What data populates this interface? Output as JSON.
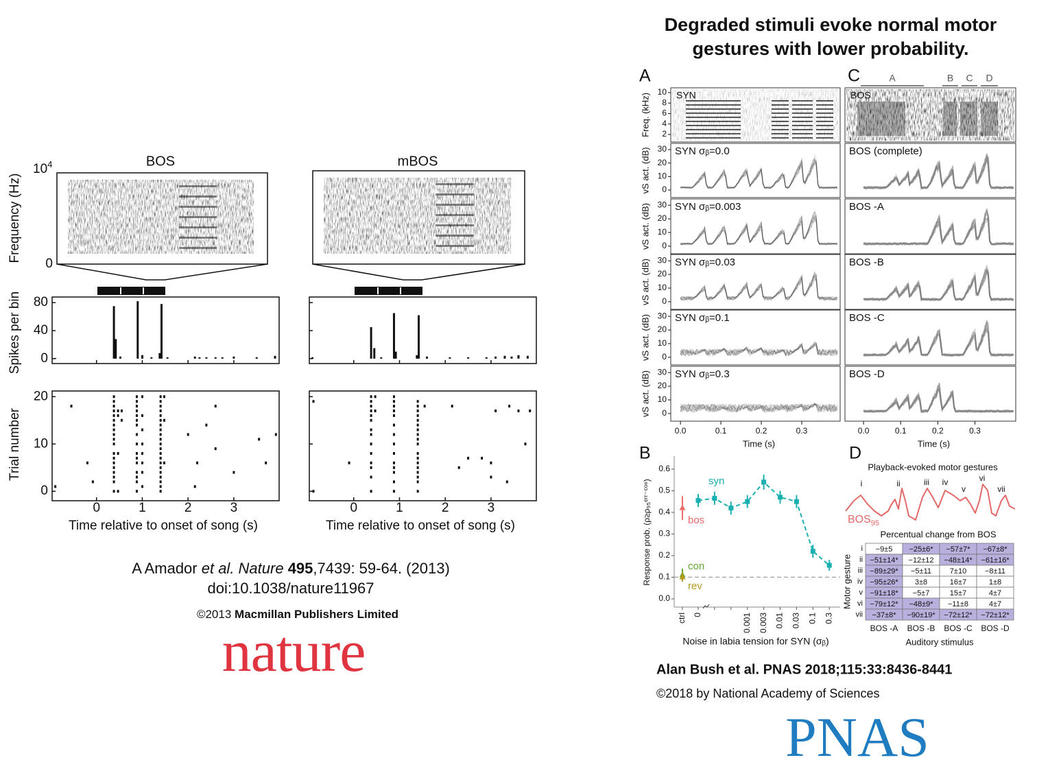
{
  "amador": {
    "panels": [
      {
        "title": "BOS",
        "spikes": [
          [
            -0.9,
            1
          ],
          [
            0.38,
            75
          ],
          [
            0.42,
            28
          ],
          [
            0.52,
            3
          ],
          [
            0.9,
            82
          ],
          [
            1.0,
            5
          ],
          [
            1.2,
            2
          ],
          [
            1.38,
            8
          ],
          [
            1.42,
            78
          ],
          [
            1.55,
            2
          ],
          [
            2.15,
            3
          ],
          [
            2.25,
            2
          ],
          [
            2.4,
            2
          ],
          [
            2.6,
            2
          ],
          [
            2.75,
            2
          ],
          [
            3.0,
            3
          ],
          [
            3.5,
            2
          ],
          [
            3.9,
            4
          ]
        ],
        "raster": [
          {
            "t": 0.38,
            "trials": [
              0,
              2,
              3,
              4,
              5,
              6,
              7,
              8,
              10,
              11,
              12,
              13,
              14,
              15,
              16,
              17,
              18,
              19,
              20
            ]
          },
          {
            "t": 0.47,
            "trials": [
              0,
              8,
              16,
              17
            ]
          },
          {
            "t": 0.55,
            "trials": [
              15,
              17
            ]
          },
          {
            "t": 0.88,
            "trials": [
              0,
              2,
              3,
              4,
              6,
              7,
              8,
              10,
              12,
              14,
              15,
              16,
              17,
              18,
              19,
              20
            ]
          },
          {
            "t": 1.0,
            "trials": [
              1,
              4,
              6,
              8,
              10,
              13,
              16,
              20
            ]
          },
          {
            "t": 1.4,
            "trials": [
              0,
              1,
              2,
              3,
              4,
              5,
              6,
              7,
              8,
              9,
              10,
              11,
              12,
              13,
              14,
              15,
              16,
              17,
              18,
              19,
              20
            ]
          },
          {
            "t": 1.48,
            "trials": [
              6,
              15,
              20
            ]
          },
          {
            "t": -0.55,
            "trials": [
              18
            ]
          },
          {
            "t": -0.2,
            "trials": [
              6
            ]
          },
          {
            "t": -0.08,
            "trials": [
              2
            ]
          },
          {
            "t": -0.9,
            "trials": [
              1
            ]
          },
          {
            "t": 2.0,
            "trials": [
              12
            ]
          },
          {
            "t": 2.15,
            "trials": [
              1
            ]
          },
          {
            "t": 2.2,
            "trials": [
              6
            ]
          },
          {
            "t": 2.4,
            "trials": [
              14
            ]
          },
          {
            "t": 2.6,
            "trials": [
              9,
              18
            ]
          },
          {
            "t": 3.0,
            "trials": [
              4
            ]
          },
          {
            "t": 3.55,
            "trials": [
              11
            ]
          },
          {
            "t": 3.7,
            "trials": [
              6
            ]
          },
          {
            "t": 3.92,
            "trials": [
              12
            ]
          }
        ]
      },
      {
        "title": "mBOS",
        "spikes": [
          [
            -0.9,
            2
          ],
          [
            0.38,
            45
          ],
          [
            0.45,
            15
          ],
          [
            0.6,
            2
          ],
          [
            0.88,
            65
          ],
          [
            0.92,
            10
          ],
          [
            1.38,
            5
          ],
          [
            1.42,
            62
          ],
          [
            1.6,
            3
          ],
          [
            2.1,
            2
          ],
          [
            2.5,
            2
          ],
          [
            2.9,
            2
          ],
          [
            3.1,
            3
          ],
          [
            3.3,
            4
          ],
          [
            3.45,
            3
          ],
          [
            3.6,
            5
          ],
          [
            3.8,
            4
          ]
        ],
        "raster": [
          {
            "t": 0.38,
            "trials": [
              0,
              3,
              5,
              6,
              8,
              10,
              12,
              13,
              15,
              16,
              17,
              18,
              19,
              20
            ]
          },
          {
            "t": 0.47,
            "trials": [
              17,
              20
            ]
          },
          {
            "t": 0.88,
            "trials": [
              0,
              2,
              4,
              5,
              6,
              8,
              10,
              12,
              14,
              16,
              17,
              18,
              19,
              20
            ]
          },
          {
            "t": 1.4,
            "trials": [
              0,
              2,
              3,
              4,
              5,
              6,
              7,
              8,
              10,
              11,
              12,
              13,
              14,
              15,
              16,
              17,
              18,
              19
            ]
          },
          {
            "t": 1.55,
            "trials": [
              18
            ]
          },
          {
            "t": -0.88,
            "trials": [
              0,
              19
            ]
          },
          {
            "t": -0.1,
            "trials": [
              6
            ]
          },
          {
            "t": 2.3,
            "trials": [
              5
            ]
          },
          {
            "t": 2.5,
            "trials": [
              7
            ]
          },
          {
            "t": 2.15,
            "trials": [
              18
            ]
          },
          {
            "t": 2.8,
            "trials": [
              7
            ]
          },
          {
            "t": 3.0,
            "trials": [
              3,
              6
            ]
          },
          {
            "t": 3.1,
            "trials": [
              17
            ]
          },
          {
            "t": 3.35,
            "trials": [
              2
            ]
          },
          {
            "t": 3.4,
            "trials": [
              18
            ]
          },
          {
            "t": 3.6,
            "trials": [
              17
            ]
          },
          {
            "t": 3.75,
            "trials": [
              10
            ]
          },
          {
            "t": 3.85,
            "trials": [
              17
            ]
          }
        ]
      }
    ],
    "freq_label": "Frequency (Hz)",
    "freq_top": "10",
    "freq_top_exp": "4",
    "freq_bottom": "0",
    "hist": {
      "ylabel": "Spikes per bin",
      "ylim": [
        -7,
        88
      ],
      "yticks": [
        0,
        40,
        80
      ]
    },
    "raster": {
      "ylabel": "Trial number",
      "ylim": [
        -2,
        21.2
      ],
      "yticks": [
        0,
        10,
        20
      ]
    },
    "xlim": [
      -0.97,
      3.99
    ],
    "xticks": [
      0,
      1,
      2,
      3
    ],
    "xlabel": "Time relative to onset of song (s)"
  },
  "citation_left": {
    "author": "A Amador ",
    "italic": "et al. Nature ",
    "volume": "495",
    "rest": ",7439: 59-64. (2013)",
    "doi": "doi:10.1038/nature11967",
    "copyright": "©2013 ",
    "publisher": "Macmillan Publishers Limited",
    "logo": "nature"
  },
  "bush": {
    "title_lines": [
      "Degraded stimuli evoke normal motor",
      "gestures with lower probability."
    ],
    "panel_letters": [
      "A",
      "B",
      "C",
      "D"
    ],
    "spec_labels": [
      "SYN",
      "BOS"
    ],
    "freq_label": "Freq. (kHz)",
    "freq_ticks": [
      10,
      8,
      6,
      4,
      2
    ],
    "freq_lim": [
      0.56,
      10.92
    ],
    "vs_label": "vS act. (dB)",
    "vs_ticks": [
      0,
      10,
      20,
      30
    ],
    "vs_lim": [
      -5.6,
      34.6
    ],
    "rows_A": [
      "SYN σᵦ=0.0",
      "SYN σᵦ=0.003",
      "SYN σᵦ=0.03",
      "SYN σᵦ=0.1",
      "SYN σᵦ=0.3"
    ],
    "rows_C": [
      "BOS (complete)",
      "BOS -A",
      "BOS -B",
      "BOS -C",
      "BOS -D"
    ],
    "segments": [
      "A",
      "B",
      "C",
      "D"
    ],
    "time_label": "Time (s)",
    "time_ticks": [
      {
        "value": 0,
        "label": "0.0"
      },
      {
        "value": 0.1,
        "label": "0.1"
      },
      {
        "value": 0.2,
        "label": "0.2"
      },
      {
        "value": 0.3,
        "label": "0.3"
      }
    ],
    "xlim_A": [
      -0.024,
      0.395
    ],
    "xlim_C": [
      -0.05,
      0.41
    ],
    "chart_B": {
      "type": "line",
      "ylabel": "Response prob. (ρ≥ρ₉₅ᵉʳʳ⁻ᶜᵒⁿ)",
      "xlabel": "Noise in labia tension for SYN (σᵦ)",
      "ylim": [
        -0.038,
        0.66
      ],
      "yticks": [
        {
          "value": 0,
          "label": "0.0"
        },
        {
          "value": 0.1,
          "label": "0.1"
        },
        {
          "value": 0.2,
          "label": "0.2"
        },
        {
          "value": 0.3,
          "label": "0.3"
        },
        {
          "value": 0.4,
          "label": "0.4"
        },
        {
          "value": 0.5,
          "label": "0.5"
        },
        {
          "value": 0.6,
          "label": "0.6"
        }
      ],
      "categories": [
        "ctrl",
        "0",
        null,
        null,
        "0.001",
        "0.003",
        "0.01",
        "0.03",
        "0.1",
        "0.3"
      ],
      "reference_line": 0.1,
      "series": [
        {
          "name": "syn",
          "color": "#1aafb0",
          "values": [
            null,
            0.455,
            0.465,
            0.42,
            0.45,
            0.54,
            0.47,
            0.45,
            0.22,
            0.155
          ],
          "errors": [
            null,
            0.03,
            0.03,
            0.03,
            0.03,
            0.035,
            0.03,
            0.03,
            0.03,
            0.025
          ]
        },
        {
          "name": "bos",
          "color": "#ee6b6b",
          "values": [
            0.42,
            null,
            null,
            null,
            null,
            null,
            null,
            null,
            null,
            null
          ],
          "errors": [
            0.055,
            null,
            null,
            null,
            null,
            null,
            null,
            null,
            null,
            null
          ]
        },
        {
          "name": "con",
          "color": "#66a830",
          "values": [
            0.11,
            null,
            null,
            null,
            null,
            null,
            null,
            null,
            null,
            null
          ],
          "errors": [
            0.03,
            null,
            null,
            null,
            null,
            null,
            null,
            null,
            null,
            null
          ]
        },
        {
          "name": "rev",
          "color": "#b59a1c",
          "values": [
            0.1,
            null,
            null,
            null,
            null,
            null,
            null,
            null,
            null,
            null
          ],
          "errors": [
            0.02,
            null,
            null,
            null,
            null,
            null,
            null,
            null,
            null,
            null
          ]
        }
      ]
    },
    "panel_D": {
      "title": "Playback-evoked motor gestures",
      "gestures": [
        "i",
        "ii",
        "iii",
        "iv",
        "v",
        "vi",
        "vii"
      ],
      "trace_label": "BOS",
      "trace_sub": "95",
      "table_title": "Percentual change from BOS",
      "rows": [
        [
          "−9±5",
          "−25±6*",
          "−57±7*",
          "−67±8*"
        ],
        [
          "−51±14*",
          "−12±12",
          "−48±14*",
          "−61±16*"
        ],
        [
          "−89±29*",
          "−5±11",
          "7±10",
          "−8±11"
        ],
        [
          "−95±26*",
          "3±8",
          "16±7",
          "1±8"
        ],
        [
          "−91±18*",
          "−5±7",
          "15±7",
          "4±7"
        ],
        [
          "−79±12*",
          "−48±9*",
          "−11±8",
          "4±7"
        ],
        [
          "−37±8*",
          "−90±19*",
          "−72±12*",
          "−72±12*"
        ]
      ],
      "columns": [
        "BOS -A",
        "BOS -B",
        "BOS -C",
        "BOS -D"
      ],
      "row_axis": "Motor gesture",
      "col_axis": "Auditory stimulus"
    }
  },
  "citation_right": {
    "text": "Alan Bush et al. PNAS 2018;115:33:8436-8441",
    "copyright": "©2018 by National Academy of Sciences",
    "logo": "PNAS"
  }
}
